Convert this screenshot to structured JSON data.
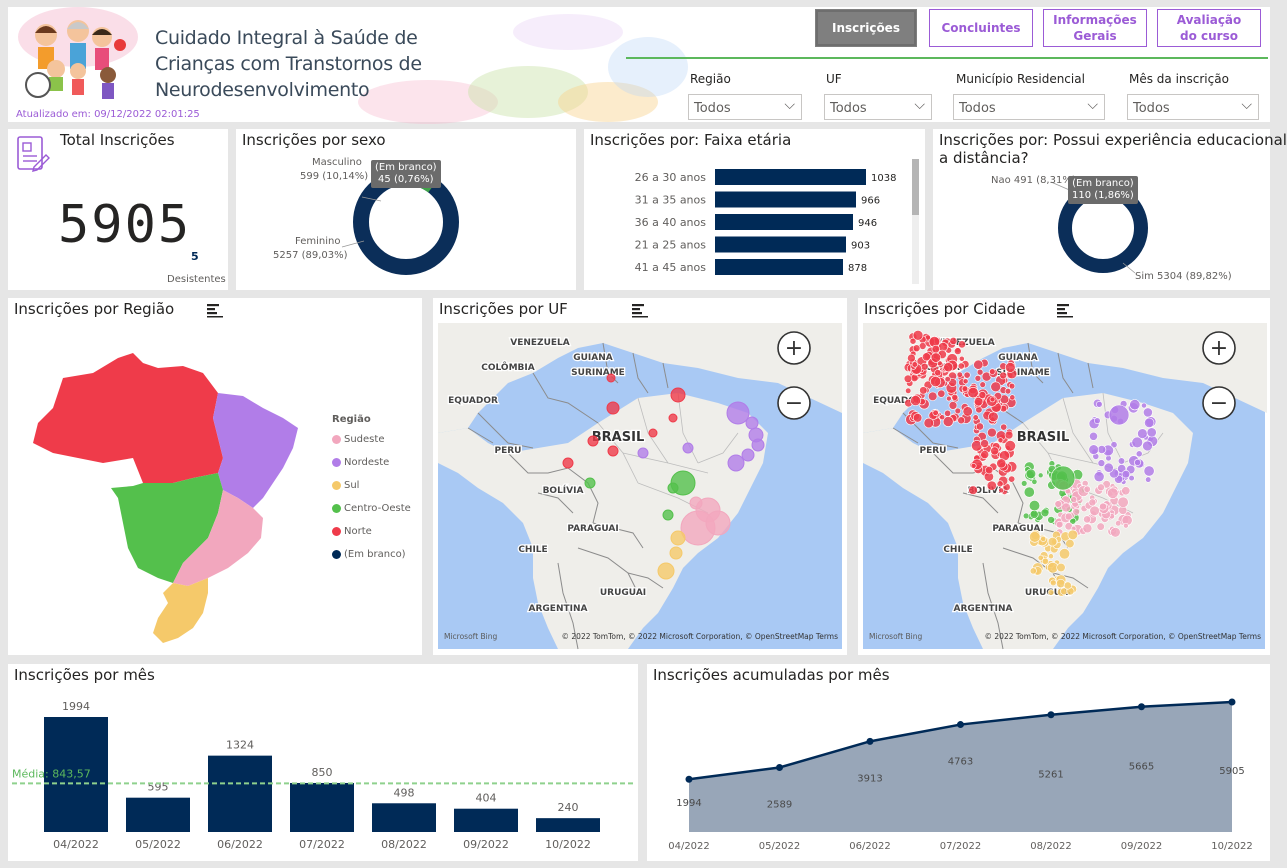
{
  "header": {
    "title_line1": "Cuidado Integral à Saúde de",
    "title_line2": "Crianças com Transtornos de",
    "title_line3": "Neurodesenvolvimento",
    "updated": "Atualizado em: 09/12/2022 02:01:25",
    "nav": [
      {
        "label": "Inscrições",
        "active": true
      },
      {
        "label": "Concluintes",
        "active": false
      },
      {
        "label": "Informações Gerais",
        "active": false
      },
      {
        "label": "Avaliação do curso",
        "active": false
      }
    ],
    "filters": [
      {
        "label": "Região",
        "value": "Todos"
      },
      {
        "label": "UF",
        "value": "Todos"
      },
      {
        "label": "Município Residencial",
        "value": "Todos"
      },
      {
        "label": "Mês da inscrição",
        "value": "Todos"
      }
    ],
    "accent_color": "#9b5bd6",
    "line_color": "#5cb85c"
  },
  "total": {
    "title": "Total Inscrições",
    "value": "5905",
    "desist_value": "5",
    "desist_label": "Desistentes"
  },
  "sexo": {
    "title": "Inscrições por sexo",
    "masc_label": "Masculino",
    "masc_value": "599 (10,14%)",
    "blank_label": "(Em branco)",
    "blank_value": "45 (0,76%)",
    "fem_label": "Feminino",
    "fem_value": "5257 (89,03%)"
  },
  "faixa": {
    "title": "Inscrições por: Faixa etária",
    "rows": [
      {
        "label": "26 a 30 anos",
        "value": 1038
      },
      {
        "label": "31 a 35 anos",
        "value": 966
      },
      {
        "label": "36 a 40 anos",
        "value": 946
      },
      {
        "label": "21 a 25 anos",
        "value": 903
      },
      {
        "label": "41 a 45 anos",
        "value": 878
      }
    ]
  },
  "ead": {
    "title_line1": "Inscrições por: Possui experiência educacional",
    "title_line2": "a distância?",
    "nao": "Nao 491 (8,31%)",
    "blank_label": "(Em branco)",
    "blank_value": "110 (1,86%)",
    "sim": "Sim 5304 (89,82%)"
  },
  "regiao": {
    "title": "Inscrições por Região",
    "legend_title": "Região",
    "legend": [
      {
        "label": "Sudeste",
        "color": "#f2a7be"
      },
      {
        "label": "Nordeste",
        "color": "#b17de8"
      },
      {
        "label": "Sul",
        "color": "#f5c96a"
      },
      {
        "label": "Centro-Oeste",
        "color": "#54c04c"
      },
      {
        "label": "Norte",
        "color": "#ef3b4a"
      },
      {
        "label": "(Em branco)",
        "color": "#002a57"
      }
    ]
  },
  "uf": {
    "title": "Inscrições por UF",
    "labels": {
      "venezuela": "VENEZUELA",
      "guiana": "GUIANA",
      "suriname": "SURINAME",
      "colombia": "COLÔMBIA",
      "equador": "EQUADOR",
      "brasil": "BRASIL",
      "peru": "PERU",
      "bolivia": "BOLÍVIA",
      "paraguai": "PARAGUAI",
      "chile": "CHILE",
      "uruguai": "URUGUAI",
      "argentina": "ARGENTINA"
    },
    "bing": "Microsoft Bing",
    "copyright": "© 2022 TomTom, © 2022 Microsoft Corporation, © OpenStreetMap  Terms"
  },
  "cidade": {
    "title": "Inscrições por Cidade"
  },
  "mes": {
    "title": "Inscrições por mês",
    "avg_label": "Média: 843,57"
  },
  "acum": {
    "title": "Inscrições acumuladas por mês"
  },
  "chart_data": [
    {
      "type": "bar",
      "title": "Inscrições por mês",
      "categories": [
        "04/2022",
        "05/2022",
        "06/2022",
        "07/2022",
        "08/2022",
        "09/2022",
        "10/2022"
      ],
      "values": [
        1994,
        595,
        1324,
        850,
        498,
        404,
        240
      ],
      "average": 843.57,
      "color": "#002a57"
    },
    {
      "type": "area",
      "title": "Inscrições acumuladas por mês",
      "categories": [
        "04/2022",
        "05/2022",
        "06/2022",
        "07/2022",
        "08/2022",
        "09/2022",
        "10/2022"
      ],
      "values": [
        1994,
        2589,
        3913,
        4763,
        5261,
        5665,
        5905
      ],
      "color": "#002a57",
      "fill": "#98a6b8"
    }
  ]
}
